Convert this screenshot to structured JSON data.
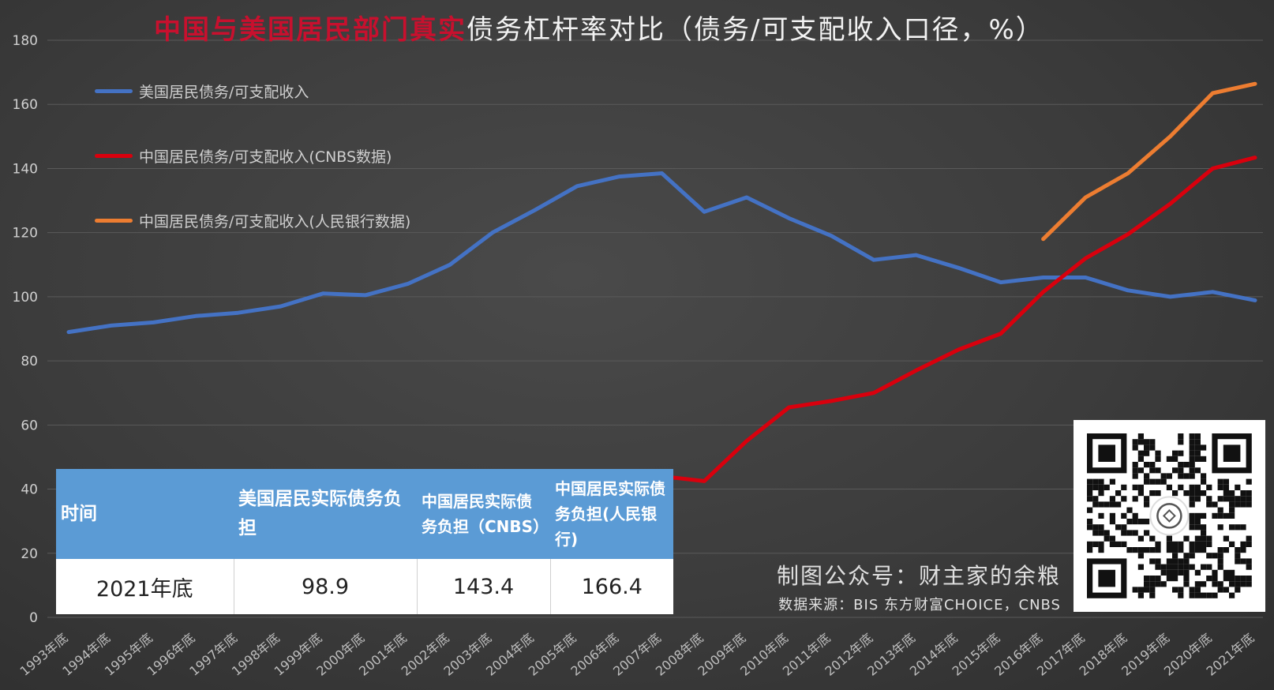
{
  "title": {
    "part_red": "中国与美国居民部门真实",
    "part_white": "债务杠杆率对比（债务/可支配收入口径，%）"
  },
  "colors": {
    "us": "#4472c4",
    "cn_cnbs": "#d9000d",
    "cn_pboc": "#ed7d31",
    "table_header": "#5b9bd5"
  },
  "chart_data": {
    "type": "line",
    "categories": [
      "1993年底",
      "1994年底",
      "1995年底",
      "1996年底",
      "1997年底",
      "1998年底",
      "1999年底",
      "2000年底",
      "2001年底",
      "2002年底",
      "2003年底",
      "2004年底",
      "2005年底",
      "2006年底",
      "2007年底",
      "2008年底",
      "2009年底",
      "2010年底",
      "2011年底",
      "2012年底",
      "2013年底",
      "2014年底",
      "2015年底",
      "2016年底",
      "2017年底",
      "2018年底",
      "2019年底",
      "2020年底",
      "2021年底"
    ],
    "ylim": [
      0,
      180
    ],
    "yticks": [
      "0",
      "20",
      "40",
      "60",
      "80",
      "100",
      "120",
      "140",
      "160",
      "180"
    ],
    "grid": true,
    "legend_position": "top-left",
    "series": [
      {
        "name": "美国居民债务/可支配收入",
        "color": "#4472c4",
        "values": [
          89,
          91,
          92,
          94,
          95,
          97,
          101,
          100.5,
          104,
          110,
          120,
          127,
          134.5,
          137.5,
          138.5,
          126.5,
          131,
          124.5,
          119,
          111.5,
          113,
          109,
          104.5,
          106,
          106,
          102,
          100,
          101.5,
          98.9
        ]
      },
      {
        "name": "中国居民债务/可支配收入(CNBS数据)",
        "color": "#d9000d",
        "values": [
          null,
          null,
          null,
          null,
          null,
          null,
          null,
          null,
          null,
          null,
          null,
          null,
          null,
          null,
          44,
          42.5,
          55,
          65.5,
          67.5,
          70,
          77,
          83.5,
          88.5,
          101.5,
          112,
          119.5,
          129,
          140,
          143.4
        ]
      },
      {
        "name": "中国居民债务/可支配收入(人民银行数据)",
        "color": "#ed7d31",
        "values": [
          null,
          null,
          null,
          null,
          null,
          null,
          null,
          null,
          null,
          null,
          null,
          null,
          null,
          null,
          null,
          null,
          null,
          null,
          null,
          null,
          null,
          null,
          null,
          118,
          131,
          138.5,
          150,
          163.5,
          166.4
        ]
      }
    ]
  },
  "table": {
    "headers": [
      "时间",
      "美国居民实际债务负担",
      "中国居民实际债务负担（CNBS）",
      "中国居民实际债务负担(人民银行)"
    ],
    "row": [
      "2021年底",
      "98.9",
      "143.4",
      "166.4"
    ]
  },
  "credit": {
    "main": "制图公众号：财主家的余粮",
    "source": "数据来源：BIS  东方财富CHOICE，CNBS"
  }
}
